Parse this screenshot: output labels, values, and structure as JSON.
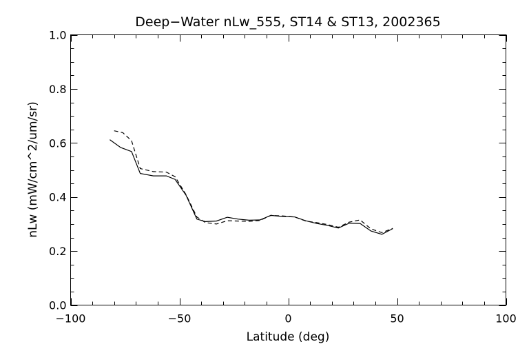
{
  "chart_data": {
    "type": "line",
    "title": "Deep−Water nLw_555, ST14 & ST13, 2002365",
    "xlabel": "Latitude (deg)",
    "ylabel": "nLw (mW/cm^2/um/sr)",
    "xlim": [
      -100,
      100
    ],
    "ylim": [
      0,
      1
    ],
    "xticks": [
      -100,
      -50,
      0,
      50,
      100
    ],
    "xtick_labels": [
      "−100",
      "−50",
      "0",
      "50",
      "100"
    ],
    "yticks": [
      0,
      0.2,
      0.4,
      0.6,
      0.8,
      1.0
    ],
    "ytick_labels": [
      "0.0",
      "0.2",
      "0.4",
      "0.6",
      "0.8",
      "1.0"
    ],
    "grid": false,
    "series": [
      {
        "style": "solid",
        "x": [
          -82,
          -77,
          -72,
          -68,
          -62,
          -56,
          -52,
          -47,
          -42,
          -38,
          -33,
          -28,
          -23,
          -18,
          -13,
          -8,
          -3,
          3,
          8,
          13,
          18,
          23,
          28,
          33,
          38,
          43,
          48
        ],
        "y": [
          0.612,
          0.583,
          0.568,
          0.487,
          0.478,
          0.478,
          0.465,
          0.407,
          0.318,
          0.309,
          0.311,
          0.325,
          0.318,
          0.314,
          0.315,
          0.332,
          0.328,
          0.326,
          0.312,
          0.302,
          0.295,
          0.285,
          0.303,
          0.302,
          0.274,
          0.262,
          0.283
        ]
      },
      {
        "style": "dashed",
        "x": [
          -80,
          -76,
          -72,
          -68,
          -62,
          -56,
          -52,
          -47,
          -42,
          -38,
          -33,
          -28,
          -23,
          -18,
          -13,
          -8,
          -3,
          3,
          8,
          13,
          18,
          23,
          28,
          33,
          38,
          43,
          48
        ],
        "y": [
          0.645,
          0.638,
          0.608,
          0.505,
          0.494,
          0.492,
          0.475,
          0.409,
          0.326,
          0.305,
          0.3,
          0.312,
          0.311,
          0.31,
          0.313,
          0.332,
          0.33,
          0.326,
          0.311,
          0.305,
          0.298,
          0.288,
          0.307,
          0.315,
          0.282,
          0.268,
          0.284
        ]
      }
    ]
  }
}
